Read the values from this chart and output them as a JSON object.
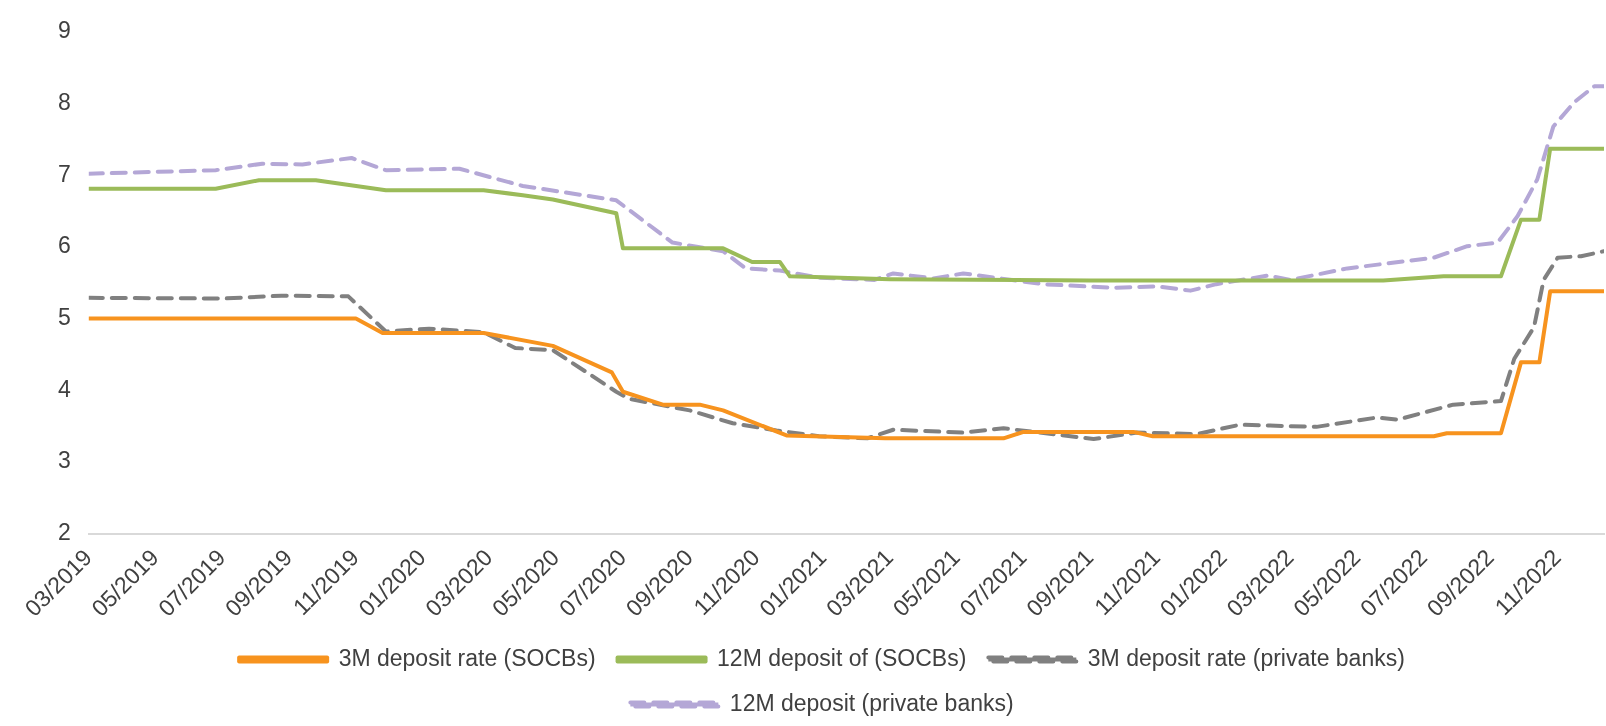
{
  "chart_data": {
    "type": "line",
    "legend": "bottom",
    "marker": "none",
    "xlim": [
      "2019-03-01",
      "2022-12-13"
    ],
    "ylim": [
      2,
      9
    ],
    "yticks": [
      2,
      3,
      4,
      5,
      6,
      7,
      8,
      9
    ],
    "xticks": [
      {
        "value": "2019-03",
        "label": "03/2019"
      },
      {
        "value": "2019-05",
        "label": "05/2019"
      },
      {
        "value": "2019-07",
        "label": "07/2019"
      },
      {
        "value": "2019-09",
        "label": "09/2019"
      },
      {
        "value": "2019-11",
        "label": "11/2019"
      },
      {
        "value": "2020-01",
        "label": "01/2020"
      },
      {
        "value": "2020-03",
        "label": "03/2020"
      },
      {
        "value": "2020-05",
        "label": "05/2020"
      },
      {
        "value": "2020-07",
        "label": "07/2020"
      },
      {
        "value": "2020-09",
        "label": "09/2020"
      },
      {
        "value": "2020-11",
        "label": "11/2020"
      },
      {
        "value": "2021-01",
        "label": "01/2021"
      },
      {
        "value": "2021-03",
        "label": "03/2021"
      },
      {
        "value": "2021-05",
        "label": "05/2021"
      },
      {
        "value": "2021-07",
        "label": "07/2021"
      },
      {
        "value": "2021-09",
        "label": "09/2021"
      },
      {
        "value": "2021-11",
        "label": "11/2021"
      },
      {
        "value": "2022-01",
        "label": "01/2022"
      },
      {
        "value": "2022-03",
        "label": "03/2022"
      },
      {
        "value": "2022-05",
        "label": "05/2022"
      },
      {
        "value": "2022-07",
        "label": "07/2022"
      },
      {
        "value": "2022-09",
        "label": "09/2022"
      },
      {
        "value": "2022-11",
        "label": "11/2022"
      }
    ],
    "series": [
      {
        "name": "3M deposit rate (SOCBs)",
        "color": "#f7931e",
        "line_style": "solid",
        "x": [
          "2019-03-01",
          "2019-11-01",
          "2019-11-25",
          "2020-02-25",
          "2020-04-28",
          "2020-06-21",
          "2020-07-01",
          "2020-08-07",
          "2020-09-10",
          "2020-10-01",
          "2020-11-28",
          "2021-02-25",
          "2021-06-13",
          "2021-07-01",
          "2021-10-10",
          "2021-10-28",
          "2022-07-10",
          "2022-07-22",
          "2022-09-10",
          "2022-09-28",
          "2022-10-15",
          "2022-10-25",
          "2022-12-13"
        ],
        "values": [
          5.0,
          5.0,
          4.8,
          4.8,
          4.62,
          4.25,
          3.98,
          3.8,
          3.8,
          3.72,
          3.37,
          3.33,
          3.33,
          3.42,
          3.42,
          3.36,
          3.36,
          3.4,
          3.4,
          4.39,
          4.39,
          5.38,
          5.38
        ]
      },
      {
        "name": "12M deposit of (SOCBs)",
        "color": "#9bbb59",
        "line_style": "solid",
        "x": [
          "2019-03-01",
          "2019-06-25",
          "2019-08-04",
          "2019-09-25",
          "2019-11-28",
          "2020-02-25",
          "2020-04-01",
          "2020-04-28",
          "2020-06-25",
          "2020-07-01",
          "2020-10-01",
          "2020-10-28",
          "2020-11-22",
          "2020-12-01",
          "2021-03-01",
          "2021-09-01",
          "2022-05-25",
          "2022-07-19",
          "2022-09-10",
          "2022-09-28",
          "2022-10-15",
          "2022-10-25",
          "2022-12-13"
        ],
        "values": [
          6.81,
          6.81,
          6.93,
          6.93,
          6.79,
          6.79,
          6.72,
          6.66,
          6.47,
          5.98,
          5.98,
          5.79,
          5.79,
          5.59,
          5.55,
          5.53,
          5.53,
          5.59,
          5.59,
          6.38,
          6.38,
          7.37,
          7.37
        ]
      },
      {
        "name": "3M deposit rate (private banks)",
        "color": "#808080",
        "line_style": "dashed",
        "x": [
          "2019-03-01",
          "2019-07-01",
          "2019-08-25",
          "2019-10-25",
          "2019-11-28",
          "2020-01-07",
          "2020-02-25",
          "2020-03-25",
          "2020-04-28",
          "2020-06-25",
          "2020-07-07",
          "2020-09-01",
          "2020-10-10",
          "2020-11-19",
          "2020-12-28",
          "2021-02-10",
          "2021-03-04",
          "2021-05-07",
          "2021-06-13",
          "2021-09-04",
          "2021-10-13",
          "2021-12-07",
          "2022-01-16",
          "2022-03-25",
          "2022-05-19",
          "2022-06-07",
          "2022-07-28",
          "2022-09-10",
          "2022-09-22",
          "2022-10-10",
          "2022-10-19",
          "2022-11-01",
          "2022-11-22",
          "2022-12-13"
        ],
        "values": [
          5.29,
          5.28,
          5.32,
          5.31,
          4.82,
          4.86,
          4.81,
          4.59,
          4.56,
          3.98,
          3.88,
          3.72,
          3.54,
          3.44,
          3.36,
          3.33,
          3.45,
          3.41,
          3.47,
          3.32,
          3.41,
          3.39,
          3.52,
          3.49,
          3.62,
          3.59,
          3.8,
          3.85,
          4.44,
          4.88,
          5.54,
          5.85,
          5.87,
          5.94
        ]
      },
      {
        "name": "12M deposit (private banks)",
        "color": "#b4a7d6",
        "line_style": "dashed",
        "x": [
          "2019-03-01",
          "2019-06-25",
          "2019-08-07",
          "2019-09-13",
          "2019-10-28",
          "2019-11-28",
          "2020-02-04",
          "2020-04-01",
          "2020-06-25",
          "2020-08-16",
          "2020-10-01",
          "2020-10-22",
          "2020-11-22",
          "2020-12-28",
          "2021-02-16",
          "2021-03-04",
          "2021-04-10",
          "2021-05-07",
          "2021-07-19",
          "2021-09-22",
          "2021-11-01",
          "2021-12-01",
          "2021-12-25",
          "2022-02-10",
          "2022-03-01",
          "2022-04-22",
          "2022-07-10",
          "2022-08-10",
          "2022-09-07",
          "2022-09-25",
          "2022-10-13",
          "2022-10-28",
          "2022-11-16",
          "2022-12-04",
          "2022-12-13"
        ],
        "values": [
          7.02,
          7.07,
          7.16,
          7.15,
          7.24,
          7.07,
          7.09,
          6.85,
          6.65,
          6.06,
          5.94,
          5.7,
          5.67,
          5.57,
          5.54,
          5.63,
          5.56,
          5.63,
          5.48,
          5.43,
          5.45,
          5.39,
          5.48,
          5.6,
          5.54,
          5.7,
          5.85,
          6.01,
          6.06,
          6.43,
          6.94,
          7.68,
          8.02,
          8.24,
          8.24
        ]
      }
    ]
  }
}
